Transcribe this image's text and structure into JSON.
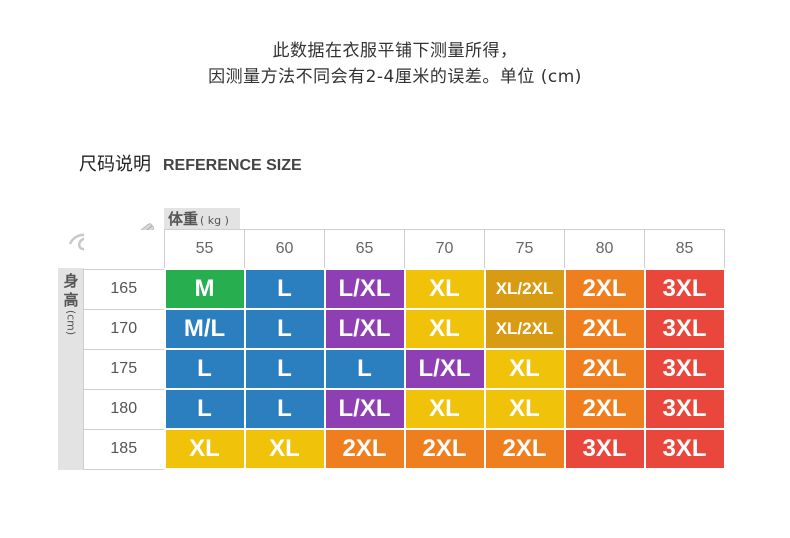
{
  "notice": {
    "line1": "此数据在衣服平铺下测量所得，",
    "line2": "因测量方法不同会有2-4厘米的误差。单位 (cm)"
  },
  "title": {
    "cn": "尺码说明",
    "en": "REFERENCE SIZE"
  },
  "weight_label": {
    "cn": "体重",
    "unit": "( kg )"
  },
  "height_label": {
    "cn_line1": "身",
    "cn_line2": "高",
    "unit": "(cm)"
  },
  "weights": [
    "55",
    "60",
    "65",
    "70",
    "75",
    "80",
    "85"
  ],
  "rows": [
    {
      "height": "165",
      "sizes": [
        "M",
        "L",
        "L/XL",
        "XL",
        "XL/2XL",
        "2XL",
        "3XL"
      ]
    },
    {
      "height": "170",
      "sizes": [
        "M/L",
        "L",
        "L/XL",
        "XL",
        "XL/2XL",
        "2XL",
        "3XL"
      ]
    },
    {
      "height": "175",
      "sizes": [
        "L",
        "L",
        "L",
        "L/XL",
        "XL",
        "2XL",
        "3XL"
      ]
    },
    {
      "height": "180",
      "sizes": [
        "L",
        "L",
        "L/XL",
        "XL",
        "XL",
        "2XL",
        "3XL"
      ]
    },
    {
      "height": "185",
      "sizes": [
        "XL",
        "XL",
        "2XL",
        "2XL",
        "2XL",
        "3XL",
        "3XL"
      ]
    }
  ],
  "size_colors": {
    "M": "#27ae4f",
    "M/L": "#2b7fbf",
    "L": "#2b7fbf",
    "L/XL": "#8e3fb3",
    "XL": "#f0c20a",
    "XL/2XL": "#d99a14",
    "2XL": "#ef7f1e",
    "3XL": "#e9473b"
  }
}
